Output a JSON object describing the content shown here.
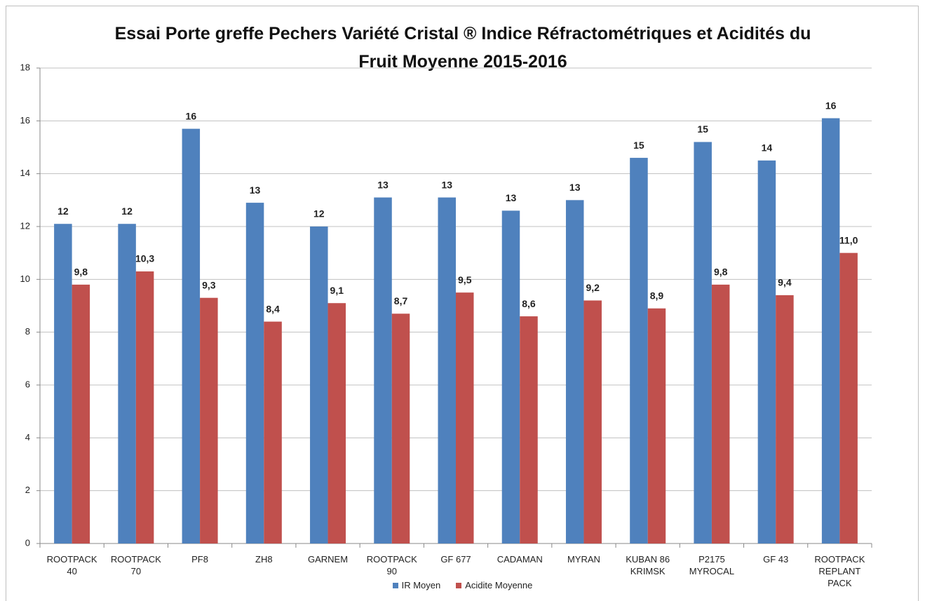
{
  "chart_data": {
    "type": "bar",
    "title": "Essai Porte greffe Pechers Variété Cristal ® Indice Réfractométriques et Acidités du Fruit Moyenne 2015-2016",
    "categories": [
      "ROOTPACK 40",
      "ROOTPACK 70",
      "PF8",
      "ZH8",
      "GARNEM",
      "ROOTPACK 90",
      "GF 677",
      "CADAMAN",
      "MYRAN",
      "KUBAN 86 KRIMSK",
      "P2175 MYROCAL",
      "GF 43",
      "ROOTPACK REPLANT PACK"
    ],
    "series": [
      {
        "name": "IR Moyen",
        "color": "#4f81bd",
        "values": [
          12.1,
          12.1,
          15.7,
          12.9,
          12.0,
          13.1,
          13.1,
          12.6,
          13.0,
          14.6,
          15.2,
          14.5,
          16.1
        ],
        "value_labels": [
          "12",
          "12",
          "16",
          "13",
          "12",
          "13",
          "13",
          "13",
          "13",
          "15",
          "15",
          "14",
          "16"
        ]
      },
      {
        "name": "Acidite Moyenne",
        "color": "#c0504d",
        "values": [
          9.8,
          10.3,
          9.3,
          8.4,
          9.1,
          8.7,
          9.5,
          8.6,
          9.2,
          8.9,
          9.8,
          9.4,
          11.0
        ],
        "value_labels": [
          "9,8",
          "10,3",
          "9,3",
          "8,4",
          "9,1",
          "8,7",
          "9,5",
          "8,6",
          "9,2",
          "8,9",
          "9,8",
          "9,4",
          "11,0"
        ]
      }
    ],
    "ylim": [
      0,
      18
    ],
    "yticks": [
      0,
      2,
      4,
      6,
      8,
      10,
      12,
      14,
      16,
      18
    ],
    "grid": true,
    "legend": "bottom"
  }
}
